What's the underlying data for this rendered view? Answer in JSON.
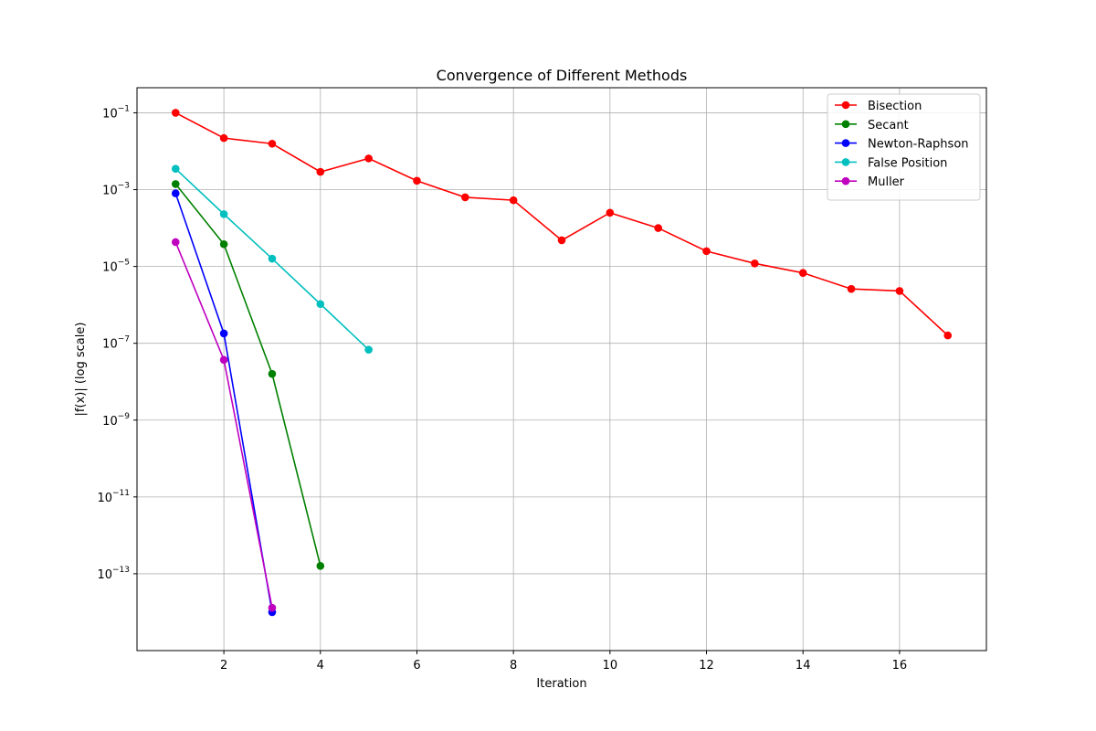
{
  "chart_data": {
    "type": "line",
    "title": "Convergence of Different Methods",
    "xlabel": "Iteration",
    "ylabel": "|f(x)| (log scale)",
    "yscale": "log",
    "xlim": [
      0.2,
      17.8
    ],
    "ylim": [
      1e-15,
      0.45
    ],
    "x_ticks": [
      2,
      4,
      6,
      8,
      10,
      12,
      14,
      16
    ],
    "y_ticks": [
      {
        "value": 0.1,
        "base": "10",
        "exp": "−1"
      },
      {
        "value": 0.001,
        "base": "10",
        "exp": "−3"
      },
      {
        "value": 1e-05,
        "base": "10",
        "exp": "−5"
      },
      {
        "value": 1e-07,
        "base": "10",
        "exp": "−7"
      },
      {
        "value": 1e-09,
        "base": "10",
        "exp": "−9"
      },
      {
        "value": 1e-11,
        "base": "10",
        "exp": "−11"
      },
      {
        "value": 1e-13,
        "base": "10",
        "exp": "−13"
      }
    ],
    "grid": true,
    "legend_position": "top-right",
    "series": [
      {
        "name": "Bisection",
        "color": "#ff0000",
        "x": [
          1,
          2,
          3,
          4,
          5,
          6,
          7,
          8,
          9,
          10,
          11,
          12,
          13,
          14,
          15,
          16,
          17
        ],
        "y": [
          0.1,
          0.022,
          0.0157,
          0.0029,
          0.0065,
          0.0017,
          0.00063,
          0.00053,
          4.8e-05,
          0.00025,
          0.0001,
          2.5e-05,
          1.2e-05,
          6.8e-06,
          2.6e-06,
          2.3e-06,
          1.6e-07
        ]
      },
      {
        "name": "Secant",
        "color": "#008000",
        "x": [
          1,
          2,
          3,
          4
        ],
        "y": [
          0.0014,
          3.8e-05,
          1.6e-08,
          1.6e-13
        ]
      },
      {
        "name": "Newton-Raphson",
        "color": "#0000ff",
        "x": [
          1,
          2,
          3
        ],
        "y": [
          0.0008,
          1.8e-07,
          1e-14
        ]
      },
      {
        "name": "False Position",
        "color": "#00bfbf",
        "x": [
          1,
          2,
          3,
          4,
          5
        ],
        "y": [
          0.0035,
          0.00023,
          1.6e-05,
          1.05e-06,
          6.8e-08
        ]
      },
      {
        "name": "Muller",
        "color": "#bf00bf",
        "x": [
          1,
          2,
          3
        ],
        "y": [
          4.3e-05,
          3.7e-08,
          1.3e-14
        ]
      }
    ]
  }
}
